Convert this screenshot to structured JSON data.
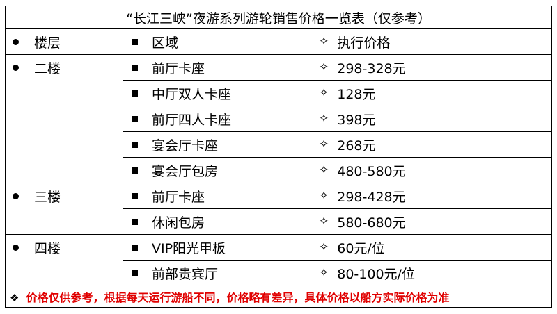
{
  "title": "“长江三峡”夜游系列游轮销售价格一览表（仅参考）",
  "headers": {
    "floor": "楼层",
    "area": "区域",
    "price": "执行价格"
  },
  "groups": [
    {
      "floor": "二楼",
      "rows": [
        {
          "area": "前厅卡座",
          "price": "298-328元"
        },
        {
          "area": "中厅双人卡座",
          "price": "128元"
        },
        {
          "area": "前厅四人卡座",
          "price": "398元"
        },
        {
          "area": "宴会厅卡座",
          "price": "268元"
        },
        {
          "area": "宴会厅包房",
          "price": "480-580元"
        }
      ]
    },
    {
      "floor": "三楼",
      "rows": [
        {
          "area": "前厅卡座",
          "price": "298-428元"
        },
        {
          "area": "休闲包房",
          "price": "580-680元"
        }
      ]
    },
    {
      "floor": "四楼",
      "rows": [
        {
          "area": "VIP阳光甲板",
          "price": "60元/位"
        },
        {
          "area": "前部贵宾厅",
          "price": "80-100元/位"
        }
      ]
    }
  ],
  "note": "价格仅供参考，根据每天运行游船不同，价格略有差异，具体价格以船方实际价格为准",
  "colors": {
    "note_text": "#e00000",
    "border": "#000000"
  },
  "icons": {
    "floor_marker": "filled-circle-icon",
    "area_marker": "filled-square-icon",
    "price_marker": "diamond-outline-icon",
    "note_marker": "four-diamond-icon"
  }
}
